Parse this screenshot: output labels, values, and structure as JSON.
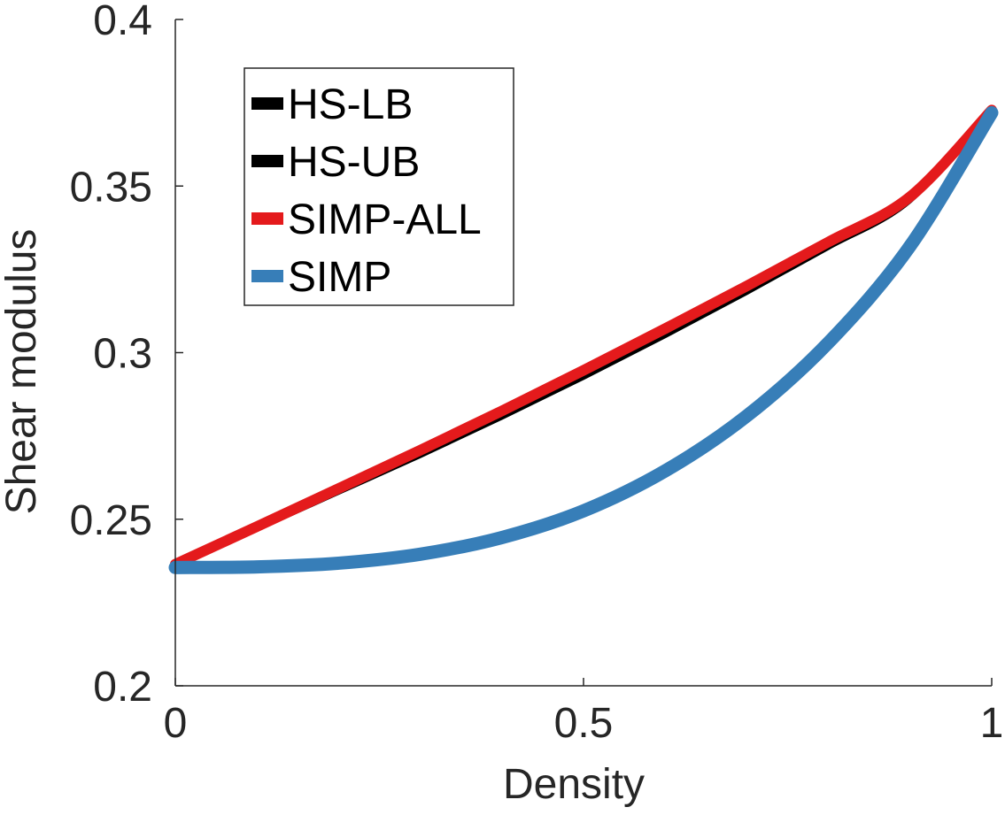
{
  "chart_data": {
    "type": "line",
    "xlabel": "Density",
    "ylabel": "Shear modulus",
    "xlim": [
      0,
      1
    ],
    "ylim": [
      0.2,
      0.4
    ],
    "xticks": [
      0,
      0.5,
      1
    ],
    "xtick_labels": [
      "0",
      "0.5",
      "1"
    ],
    "yticks": [
      0.2,
      0.25,
      0.3,
      0.35,
      0.4
    ],
    "ytick_labels": [
      "0.2",
      "0.25",
      "0.3",
      "0.35",
      "0.4"
    ],
    "grid": false,
    "legend_position": "top-left",
    "x": [
      0,
      0.1,
      0.2,
      0.3,
      0.4,
      0.5,
      0.6,
      0.7,
      0.8,
      0.9,
      1.0
    ],
    "series": [
      {
        "name": "HS-LB",
        "color": "#000000",
        "values": [
          0.2365,
          0.247,
          0.258,
          0.269,
          0.2805,
          0.2925,
          0.305,
          0.318,
          0.3315,
          0.3455,
          0.3728
        ]
      },
      {
        "name": "HS-UB",
        "color": "#000000",
        "values": [
          0.2365,
          0.248,
          0.2595,
          0.271,
          0.2828,
          0.295,
          0.3075,
          0.3203,
          0.3335,
          0.347,
          0.3728
        ]
      },
      {
        "name": "SIMP-ALL",
        "color": "#e41a1c",
        "values": [
          0.2365,
          0.2478,
          0.2592,
          0.2707,
          0.2825,
          0.2947,
          0.3072,
          0.32,
          0.3332,
          0.3468,
          0.3728
        ]
      },
      {
        "name": "SIMP",
        "color": "#377eb8",
        "values": [
          0.2355,
          0.2357,
          0.2368,
          0.2395,
          0.2445,
          0.2525,
          0.2645,
          0.281,
          0.303,
          0.332,
          0.372
        ]
      }
    ]
  }
}
